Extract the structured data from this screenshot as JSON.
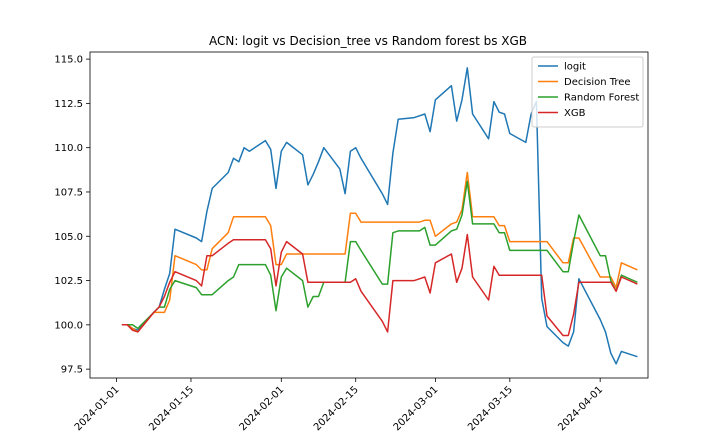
{
  "chart_data": {
    "type": "line",
    "title": "ACN: logit vs Decision_tree vs Random forest bs XGB",
    "xlabel": "",
    "ylabel": "",
    "x_axis_type": "date",
    "xlim": [
      "2023-12-27",
      "2024-04-10"
    ],
    "ylim": [
      97.0,
      115.4
    ],
    "x_ticks": [
      "2024-01-01",
      "2024-01-15",
      "2024-02-01",
      "2024-02-15",
      "2024-03-01",
      "2024-03-15",
      "2024-04-01"
    ],
    "y_ticks": [
      97.5,
      100.0,
      102.5,
      105.0,
      107.5,
      110.0,
      112.5,
      115.0
    ],
    "grid": false,
    "legend_position": "top-right",
    "series": [
      {
        "name": "logit",
        "color": "#1f77b4",
        "points": [
          [
            "2024-01-02",
            100.0
          ],
          [
            "2024-01-03",
            100.0
          ],
          [
            "2024-01-04",
            99.8
          ],
          [
            "2024-01-05",
            99.7
          ],
          [
            "2024-01-08",
            100.7
          ],
          [
            "2024-01-09",
            101.0
          ],
          [
            "2024-01-10",
            102.0
          ],
          [
            "2024-01-11",
            102.9
          ],
          [
            "2024-01-12",
            105.4
          ],
          [
            "2024-01-16",
            104.9
          ],
          [
            "2024-01-17",
            104.7
          ],
          [
            "2024-01-18",
            106.4
          ],
          [
            "2024-01-19",
            107.7
          ],
          [
            "2024-01-22",
            108.6
          ],
          [
            "2024-01-23",
            109.4
          ],
          [
            "2024-01-24",
            109.2
          ],
          [
            "2024-01-25",
            110.0
          ],
          [
            "2024-01-26",
            109.8
          ],
          [
            "2024-01-29",
            110.4
          ],
          [
            "2024-01-30",
            109.9
          ],
          [
            "2024-01-31",
            107.7
          ],
          [
            "2024-02-01",
            109.8
          ],
          [
            "2024-02-02",
            110.3
          ],
          [
            "2024-02-05",
            109.6
          ],
          [
            "2024-02-06",
            107.9
          ],
          [
            "2024-02-07",
            108.5
          ],
          [
            "2024-02-08",
            109.2
          ],
          [
            "2024-02-09",
            110.0
          ],
          [
            "2024-02-12",
            108.8
          ],
          [
            "2024-02-13",
            107.4
          ],
          [
            "2024-02-14",
            109.8
          ],
          [
            "2024-02-15",
            110.0
          ],
          [
            "2024-02-16",
            109.4
          ],
          [
            "2024-02-20",
            107.4
          ],
          [
            "2024-02-21",
            106.8
          ],
          [
            "2024-02-22",
            109.7
          ],
          [
            "2024-02-23",
            111.6
          ],
          [
            "2024-02-26",
            111.7
          ],
          [
            "2024-02-27",
            111.8
          ],
          [
            "2024-02-28",
            111.9
          ],
          [
            "2024-02-29",
            110.9
          ],
          [
            "2024-03-01",
            112.7
          ],
          [
            "2024-03-04",
            113.5
          ],
          [
            "2024-03-05",
            111.5
          ],
          [
            "2024-03-06",
            112.7
          ],
          [
            "2024-03-07",
            114.5
          ],
          [
            "2024-03-08",
            111.9
          ],
          [
            "2024-03-11",
            110.5
          ],
          [
            "2024-03-12",
            112.6
          ],
          [
            "2024-03-13",
            112.0
          ],
          [
            "2024-03-14",
            111.9
          ],
          [
            "2024-03-15",
            110.8
          ],
          [
            "2024-03-18",
            110.3
          ],
          [
            "2024-03-19",
            111.9
          ],
          [
            "2024-03-20",
            112.6
          ],
          [
            "2024-03-21",
            101.5
          ],
          [
            "2024-03-22",
            99.9
          ],
          [
            "2024-03-25",
            99.0
          ],
          [
            "2024-03-26",
            98.8
          ],
          [
            "2024-03-27",
            99.6
          ],
          [
            "2024-03-28",
            102.6
          ],
          [
            "2024-04-01",
            100.3
          ],
          [
            "2024-04-02",
            99.6
          ],
          [
            "2024-04-03",
            98.4
          ],
          [
            "2024-04-04",
            97.8
          ],
          [
            "2024-04-05",
            98.5
          ],
          [
            "2024-04-08",
            98.2
          ]
        ]
      },
      {
        "name": "Decision Tree",
        "color": "#ff7f0e",
        "points": [
          [
            "2024-01-02",
            100.0
          ],
          [
            "2024-01-03",
            100.0
          ],
          [
            "2024-01-04",
            99.8
          ],
          [
            "2024-01-05",
            99.6
          ],
          [
            "2024-01-08",
            100.7
          ],
          [
            "2024-01-09",
            100.7
          ],
          [
            "2024-01-10",
            100.7
          ],
          [
            "2024-01-11",
            101.4
          ],
          [
            "2024-01-12",
            103.9
          ],
          [
            "2024-01-16",
            103.4
          ],
          [
            "2024-01-17",
            103.1
          ],
          [
            "2024-01-18",
            103.1
          ],
          [
            "2024-01-19",
            104.3
          ],
          [
            "2024-01-22",
            105.2
          ],
          [
            "2024-01-23",
            106.1
          ],
          [
            "2024-01-24",
            106.1
          ],
          [
            "2024-01-25",
            106.1
          ],
          [
            "2024-01-26",
            106.1
          ],
          [
            "2024-01-29",
            106.1
          ],
          [
            "2024-01-30",
            105.6
          ],
          [
            "2024-01-31",
            103.4
          ],
          [
            "2024-02-01",
            103.4
          ],
          [
            "2024-02-02",
            104.0
          ],
          [
            "2024-02-05",
            104.0
          ],
          [
            "2024-02-06",
            104.0
          ],
          [
            "2024-02-07",
            104.0
          ],
          [
            "2024-02-08",
            104.0
          ],
          [
            "2024-02-09",
            104.0
          ],
          [
            "2024-02-12",
            104.0
          ],
          [
            "2024-02-13",
            104.0
          ],
          [
            "2024-02-14",
            106.3
          ],
          [
            "2024-02-15",
            106.3
          ],
          [
            "2024-02-16",
            105.8
          ],
          [
            "2024-02-20",
            105.8
          ],
          [
            "2024-02-21",
            105.8
          ],
          [
            "2024-02-22",
            105.8
          ],
          [
            "2024-02-23",
            105.8
          ],
          [
            "2024-02-26",
            105.8
          ],
          [
            "2024-02-27",
            105.8
          ],
          [
            "2024-02-28",
            105.9
          ],
          [
            "2024-02-29",
            105.9
          ],
          [
            "2024-03-01",
            105.0
          ],
          [
            "2024-03-04",
            105.7
          ],
          [
            "2024-03-05",
            105.8
          ],
          [
            "2024-03-06",
            106.5
          ],
          [
            "2024-03-07",
            108.6
          ],
          [
            "2024-03-08",
            106.1
          ],
          [
            "2024-03-11",
            106.1
          ],
          [
            "2024-03-12",
            106.1
          ],
          [
            "2024-03-13",
            105.6
          ],
          [
            "2024-03-14",
            105.6
          ],
          [
            "2024-03-15",
            104.7
          ],
          [
            "2024-03-18",
            104.7
          ],
          [
            "2024-03-19",
            104.7
          ],
          [
            "2024-03-20",
            104.7
          ],
          [
            "2024-03-21",
            104.7
          ],
          [
            "2024-03-22",
            104.7
          ],
          [
            "2024-03-25",
            103.5
          ],
          [
            "2024-03-26",
            103.5
          ],
          [
            "2024-03-27",
            104.9
          ],
          [
            "2024-03-28",
            104.9
          ],
          [
            "2024-04-01",
            102.7
          ],
          [
            "2024-04-02",
            102.7
          ],
          [
            "2024-04-03",
            102.7
          ],
          [
            "2024-04-04",
            102.1
          ],
          [
            "2024-04-05",
            103.5
          ],
          [
            "2024-04-08",
            103.1
          ]
        ]
      },
      {
        "name": "Random Forest",
        "color": "#2ca02c",
        "points": [
          [
            "2024-01-02",
            100.0
          ],
          [
            "2024-01-03",
            100.0
          ],
          [
            "2024-01-04",
            100.0
          ],
          [
            "2024-01-05",
            99.8
          ],
          [
            "2024-01-08",
            100.7
          ],
          [
            "2024-01-09",
            101.0
          ],
          [
            "2024-01-10",
            101.0
          ],
          [
            "2024-01-11",
            102.0
          ],
          [
            "2024-01-12",
            102.5
          ],
          [
            "2024-01-16",
            102.1
          ],
          [
            "2024-01-17",
            101.7
          ],
          [
            "2024-01-18",
            101.7
          ],
          [
            "2024-01-19",
            101.7
          ],
          [
            "2024-01-22",
            102.5
          ],
          [
            "2024-01-23",
            102.7
          ],
          [
            "2024-01-24",
            103.4
          ],
          [
            "2024-01-25",
            103.4
          ],
          [
            "2024-01-26",
            103.4
          ],
          [
            "2024-01-29",
            103.4
          ],
          [
            "2024-01-30",
            102.8
          ],
          [
            "2024-01-31",
            100.8
          ],
          [
            "2024-02-01",
            102.7
          ],
          [
            "2024-02-02",
            103.2
          ],
          [
            "2024-02-05",
            102.5
          ],
          [
            "2024-02-06",
            101.0
          ],
          [
            "2024-02-07",
            101.6
          ],
          [
            "2024-02-08",
            101.6
          ],
          [
            "2024-02-09",
            102.4
          ],
          [
            "2024-02-12",
            102.4
          ],
          [
            "2024-02-13",
            102.4
          ],
          [
            "2024-02-14",
            104.7
          ],
          [
            "2024-02-15",
            104.7
          ],
          [
            "2024-02-16",
            104.2
          ],
          [
            "2024-02-20",
            102.3
          ],
          [
            "2024-02-21",
            102.3
          ],
          [
            "2024-02-22",
            105.2
          ],
          [
            "2024-02-23",
            105.3
          ],
          [
            "2024-02-26",
            105.3
          ],
          [
            "2024-02-27",
            105.3
          ],
          [
            "2024-02-28",
            105.5
          ],
          [
            "2024-02-29",
            104.5
          ],
          [
            "2024-03-01",
            104.5
          ],
          [
            "2024-03-04",
            105.3
          ],
          [
            "2024-03-05",
            105.4
          ],
          [
            "2024-03-06",
            106.2
          ],
          [
            "2024-03-07",
            108.1
          ],
          [
            "2024-03-08",
            105.7
          ],
          [
            "2024-03-11",
            105.7
          ],
          [
            "2024-03-12",
            105.7
          ],
          [
            "2024-03-13",
            105.2
          ],
          [
            "2024-03-14",
            105.2
          ],
          [
            "2024-03-15",
            104.2
          ],
          [
            "2024-03-18",
            104.2
          ],
          [
            "2024-03-19",
            104.2
          ],
          [
            "2024-03-20",
            104.2
          ],
          [
            "2024-03-21",
            104.2
          ],
          [
            "2024-03-22",
            104.2
          ],
          [
            "2024-03-25",
            103.0
          ],
          [
            "2024-03-26",
            103.0
          ],
          [
            "2024-03-27",
            104.7
          ],
          [
            "2024-03-28",
            106.2
          ],
          [
            "2024-04-01",
            103.9
          ],
          [
            "2024-04-02",
            103.9
          ],
          [
            "2024-04-03",
            102.5
          ],
          [
            "2024-04-04",
            101.9
          ],
          [
            "2024-04-05",
            102.8
          ],
          [
            "2024-04-08",
            102.4
          ]
        ]
      },
      {
        "name": "XGB",
        "color": "#d62728",
        "points": [
          [
            "2024-01-02",
            100.0
          ],
          [
            "2024-01-03",
            100.0
          ],
          [
            "2024-01-04",
            99.7
          ],
          [
            "2024-01-05",
            99.6
          ],
          [
            "2024-01-08",
            100.7
          ],
          [
            "2024-01-09",
            101.0
          ],
          [
            "2024-01-10",
            101.6
          ],
          [
            "2024-01-11",
            102.4
          ],
          [
            "2024-01-12",
            103.0
          ],
          [
            "2024-01-16",
            102.5
          ],
          [
            "2024-01-17",
            102.2
          ],
          [
            "2024-01-18",
            103.9
          ],
          [
            "2024-01-19",
            103.9
          ],
          [
            "2024-01-22",
            104.6
          ],
          [
            "2024-01-23",
            104.8
          ],
          [
            "2024-01-24",
            104.8
          ],
          [
            "2024-01-25",
            104.8
          ],
          [
            "2024-01-26",
            104.8
          ],
          [
            "2024-01-29",
            104.8
          ],
          [
            "2024-01-30",
            104.3
          ],
          [
            "2024-01-31",
            102.2
          ],
          [
            "2024-02-01",
            104.1
          ],
          [
            "2024-02-02",
            104.7
          ],
          [
            "2024-02-05",
            104.0
          ],
          [
            "2024-02-06",
            102.4
          ],
          [
            "2024-02-07",
            102.4
          ],
          [
            "2024-02-08",
            102.4
          ],
          [
            "2024-02-09",
            102.4
          ],
          [
            "2024-02-12",
            102.4
          ],
          [
            "2024-02-13",
            102.4
          ],
          [
            "2024-02-14",
            102.4
          ],
          [
            "2024-02-15",
            102.6
          ],
          [
            "2024-02-16",
            101.9
          ],
          [
            "2024-02-20",
            100.2
          ],
          [
            "2024-02-21",
            99.6
          ],
          [
            "2024-02-22",
            102.5
          ],
          [
            "2024-02-23",
            102.5
          ],
          [
            "2024-02-26",
            102.5
          ],
          [
            "2024-02-27",
            102.6
          ],
          [
            "2024-02-28",
            102.7
          ],
          [
            "2024-02-29",
            101.8
          ],
          [
            "2024-03-01",
            103.5
          ],
          [
            "2024-03-04",
            104.0
          ],
          [
            "2024-03-05",
            102.4
          ],
          [
            "2024-03-06",
            103.2
          ],
          [
            "2024-03-07",
            105.1
          ],
          [
            "2024-03-08",
            102.7
          ],
          [
            "2024-03-11",
            101.4
          ],
          [
            "2024-03-12",
            103.3
          ],
          [
            "2024-03-13",
            102.8
          ],
          [
            "2024-03-14",
            102.8
          ],
          [
            "2024-03-15",
            102.8
          ],
          [
            "2024-03-18",
            102.8
          ],
          [
            "2024-03-19",
            102.8
          ],
          [
            "2024-03-20",
            102.8
          ],
          [
            "2024-03-21",
            102.8
          ],
          [
            "2024-03-22",
            100.5
          ],
          [
            "2024-03-25",
            99.4
          ],
          [
            "2024-03-26",
            99.4
          ],
          [
            "2024-03-27",
            100.6
          ],
          [
            "2024-03-28",
            102.4
          ],
          [
            "2024-04-01",
            102.4
          ],
          [
            "2024-04-02",
            102.4
          ],
          [
            "2024-04-03",
            102.4
          ],
          [
            "2024-04-04",
            101.9
          ],
          [
            "2024-04-05",
            102.7
          ],
          [
            "2024-04-08",
            102.3
          ]
        ]
      }
    ]
  }
}
